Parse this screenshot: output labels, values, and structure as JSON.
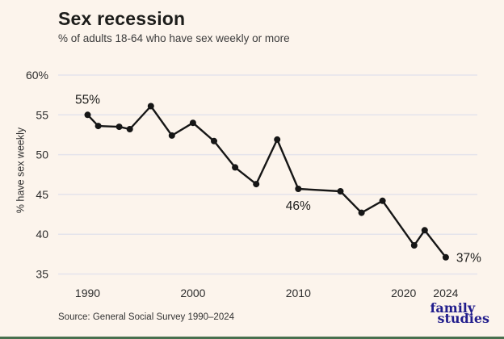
{
  "header": {
    "title": "Sex recession",
    "subtitle": "% of adults 18-64 who have sex weekly or more"
  },
  "footer": {
    "source": "Source: General Social Survey 1990–2024",
    "logo_line1": "family",
    "logo_line2": "studies"
  },
  "colors": {
    "background": "#fcf4ec",
    "line": "#161616",
    "marker": "#161616",
    "grid": "#e4e3eb",
    "tick_text": "#2e2e2e",
    "annotation_text": "#1d1d1b",
    "logo_navy": "#211d8c",
    "bottom_bar_green": "#48704e"
  },
  "chart_data": {
    "type": "line",
    "title": "Sex recession",
    "subtitle": "% of adults 18-64 who have sex weekly or more",
    "xlabel": "",
    "ylabel": "% have sex weekly",
    "x": [
      1990,
      1991,
      1993,
      1994,
      1996,
      1998,
      2000,
      2002,
      2004,
      2006,
      2008,
      2010,
      2014,
      2016,
      2018,
      2021,
      2022,
      2024
    ],
    "values": [
      55,
      53.6,
      53.5,
      53.2,
      56.1,
      52.4,
      54,
      51.7,
      48.4,
      46.3,
      51.9,
      45.7,
      45.4,
      42.7,
      44.2,
      38.6,
      40.5,
      37.1
    ],
    "xlim": [
      1987.2,
      2027
    ],
    "ylim": [
      35,
      60
    ],
    "grid": "horizontal",
    "legend": "none",
    "y_ticks": [
      {
        "value": 60,
        "label": "60%"
      },
      {
        "value": 55,
        "label": "55"
      },
      {
        "value": 50,
        "label": "50"
      },
      {
        "value": 45,
        "label": "45"
      },
      {
        "value": 40,
        "label": "40"
      },
      {
        "value": 35,
        "label": "35"
      }
    ],
    "x_ticks": [
      {
        "value": 1990,
        "label": "1990"
      },
      {
        "value": 2000,
        "label": "2000"
      },
      {
        "value": 2010,
        "label": "2010"
      },
      {
        "value": 2020,
        "label": "2020"
      },
      {
        "value": 2024,
        "label": "2024"
      }
    ],
    "annotations": [
      {
        "x": 1990,
        "y": 55,
        "text": "55%",
        "position": "above"
      },
      {
        "x": 2010,
        "y": 45.7,
        "text": "46%",
        "position": "below"
      },
      {
        "x": 2024,
        "y": 37.1,
        "text": "37%",
        "position": "right"
      }
    ]
  }
}
